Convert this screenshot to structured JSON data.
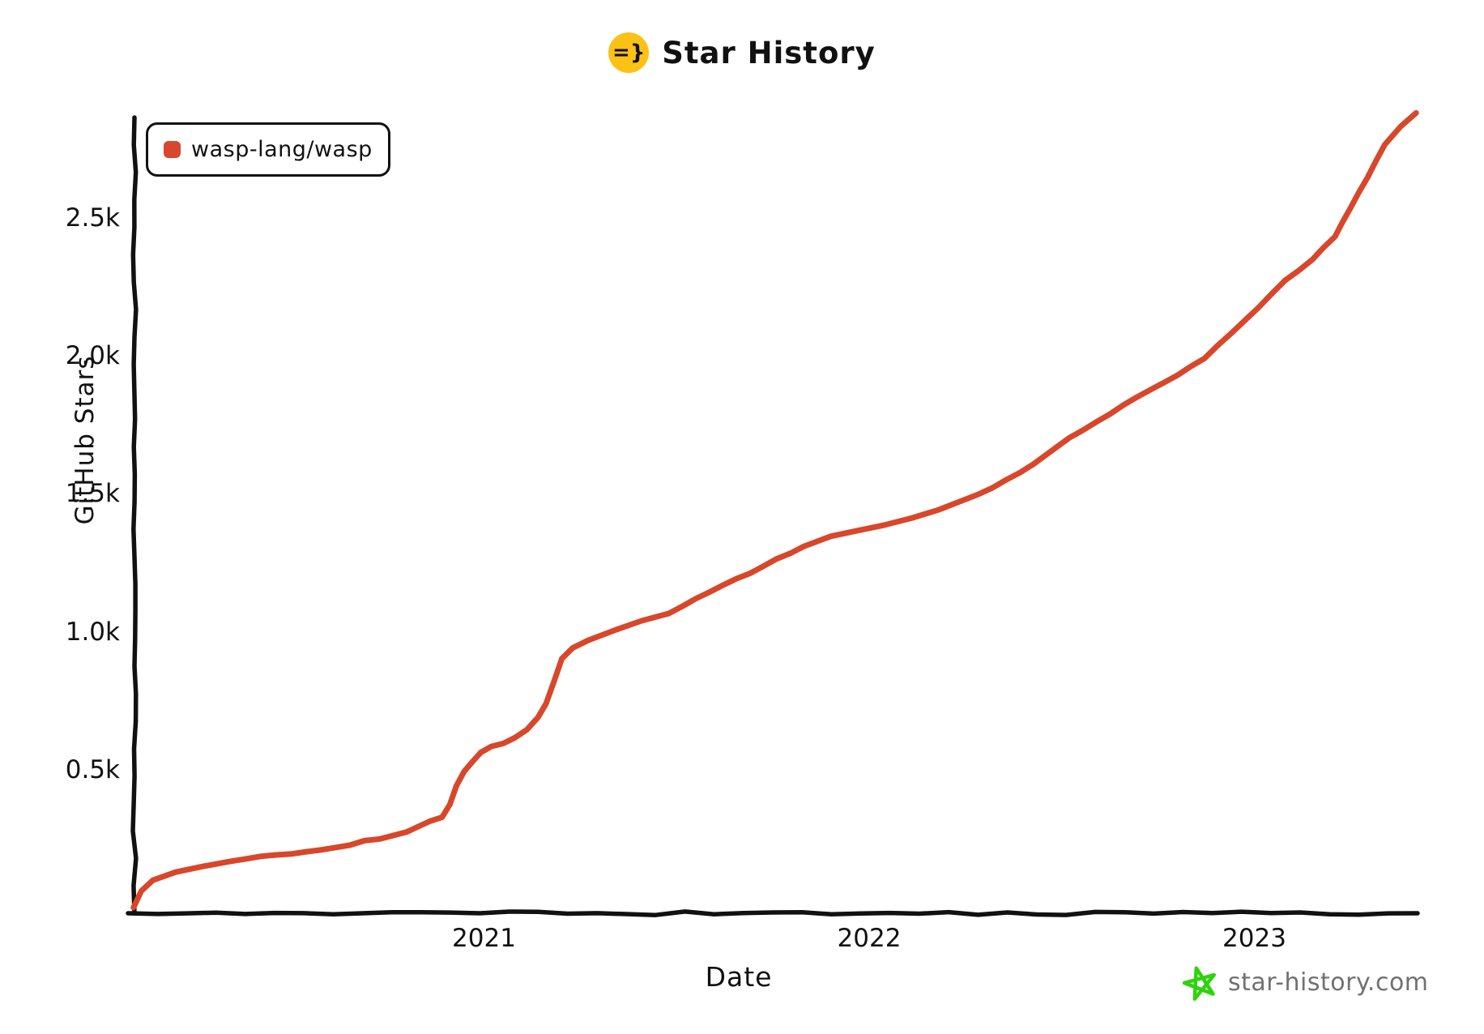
{
  "title": {
    "text": "Star History",
    "icon_text": "=}",
    "icon_bg": "#fbc116"
  },
  "legend": {
    "items": [
      {
        "label": "wasp-lang/wasp",
        "color": "#d8472b"
      }
    ]
  },
  "watermark": {
    "text": "star-history.com",
    "text_color": "#717171",
    "icon_color": "#2fd30d"
  },
  "chart_data": {
    "type": "line",
    "title": "Star History",
    "xlabel": "Date",
    "ylabel": "GitHub Stars",
    "grid": false,
    "legend_position": "top-left",
    "xlim": [
      2020.05,
      2023.47
    ],
    "ylim": [
      0,
      2900
    ],
    "x_ticks": [
      {
        "value": 2021,
        "label": "2021"
      },
      {
        "value": 2022,
        "label": "2022"
      },
      {
        "value": 2023,
        "label": "2023"
      }
    ],
    "y_ticks": [
      {
        "value": 500,
        "label": "0.5k"
      },
      {
        "value": 1000,
        "label": "1.0k"
      },
      {
        "value": 1500,
        "label": "1.5k"
      },
      {
        "value": 2000,
        "label": "2.0k"
      },
      {
        "value": 2500,
        "label": "2.5k"
      }
    ],
    "series": [
      {
        "name": "wasp-lang/wasp",
        "color": "#d8472b",
        "points": [
          [
            2020.09,
            0
          ],
          [
            2020.11,
            60
          ],
          [
            2020.14,
            100
          ],
          [
            2020.2,
            127
          ],
          [
            2020.27,
            148
          ],
          [
            2020.34,
            168
          ],
          [
            2020.42,
            183
          ],
          [
            2020.5,
            196
          ],
          [
            2020.58,
            210
          ],
          [
            2020.65,
            229
          ],
          [
            2020.73,
            250
          ],
          [
            2020.8,
            273
          ],
          [
            2020.86,
            310
          ],
          [
            2020.89,
            330
          ],
          [
            2020.91,
            375
          ],
          [
            2020.93,
            440
          ],
          [
            2020.95,
            494
          ],
          [
            2020.97,
            530
          ],
          [
            2020.99,
            564
          ],
          [
            2021.02,
            582
          ],
          [
            2021.05,
            597
          ],
          [
            2021.08,
            615
          ],
          [
            2021.11,
            647
          ],
          [
            2021.14,
            690
          ],
          [
            2021.16,
            740
          ],
          [
            2021.18,
            820
          ],
          [
            2021.2,
            903
          ],
          [
            2021.23,
            941
          ],
          [
            2021.27,
            970
          ],
          [
            2021.34,
            1006
          ],
          [
            2021.41,
            1038
          ],
          [
            2021.48,
            1067
          ],
          [
            2021.55,
            1117
          ],
          [
            2021.62,
            1167
          ],
          [
            2021.69,
            1214
          ],
          [
            2021.76,
            1264
          ],
          [
            2021.83,
            1308
          ],
          [
            2021.9,
            1347
          ],
          [
            2021.97,
            1365
          ],
          [
            2022.04,
            1385
          ],
          [
            2022.11,
            1411
          ],
          [
            2022.18,
            1441
          ],
          [
            2022.25,
            1476
          ],
          [
            2022.32,
            1520
          ],
          [
            2022.39,
            1579
          ],
          [
            2022.46,
            1638
          ],
          [
            2022.52,
            1700
          ],
          [
            2022.59,
            1762
          ],
          [
            2022.66,
            1822
          ],
          [
            2022.73,
            1873
          ],
          [
            2022.8,
            1932
          ],
          [
            2022.87,
            1991
          ],
          [
            2022.94,
            2079
          ],
          [
            2023.01,
            2176
          ],
          [
            2023.08,
            2273
          ],
          [
            2023.15,
            2352
          ],
          [
            2023.21,
            2431
          ],
          [
            2023.27,
            2587
          ],
          [
            2023.34,
            2764
          ],
          [
            2023.38,
            2831
          ],
          [
            2023.42,
            2880
          ]
        ]
      }
    ]
  }
}
